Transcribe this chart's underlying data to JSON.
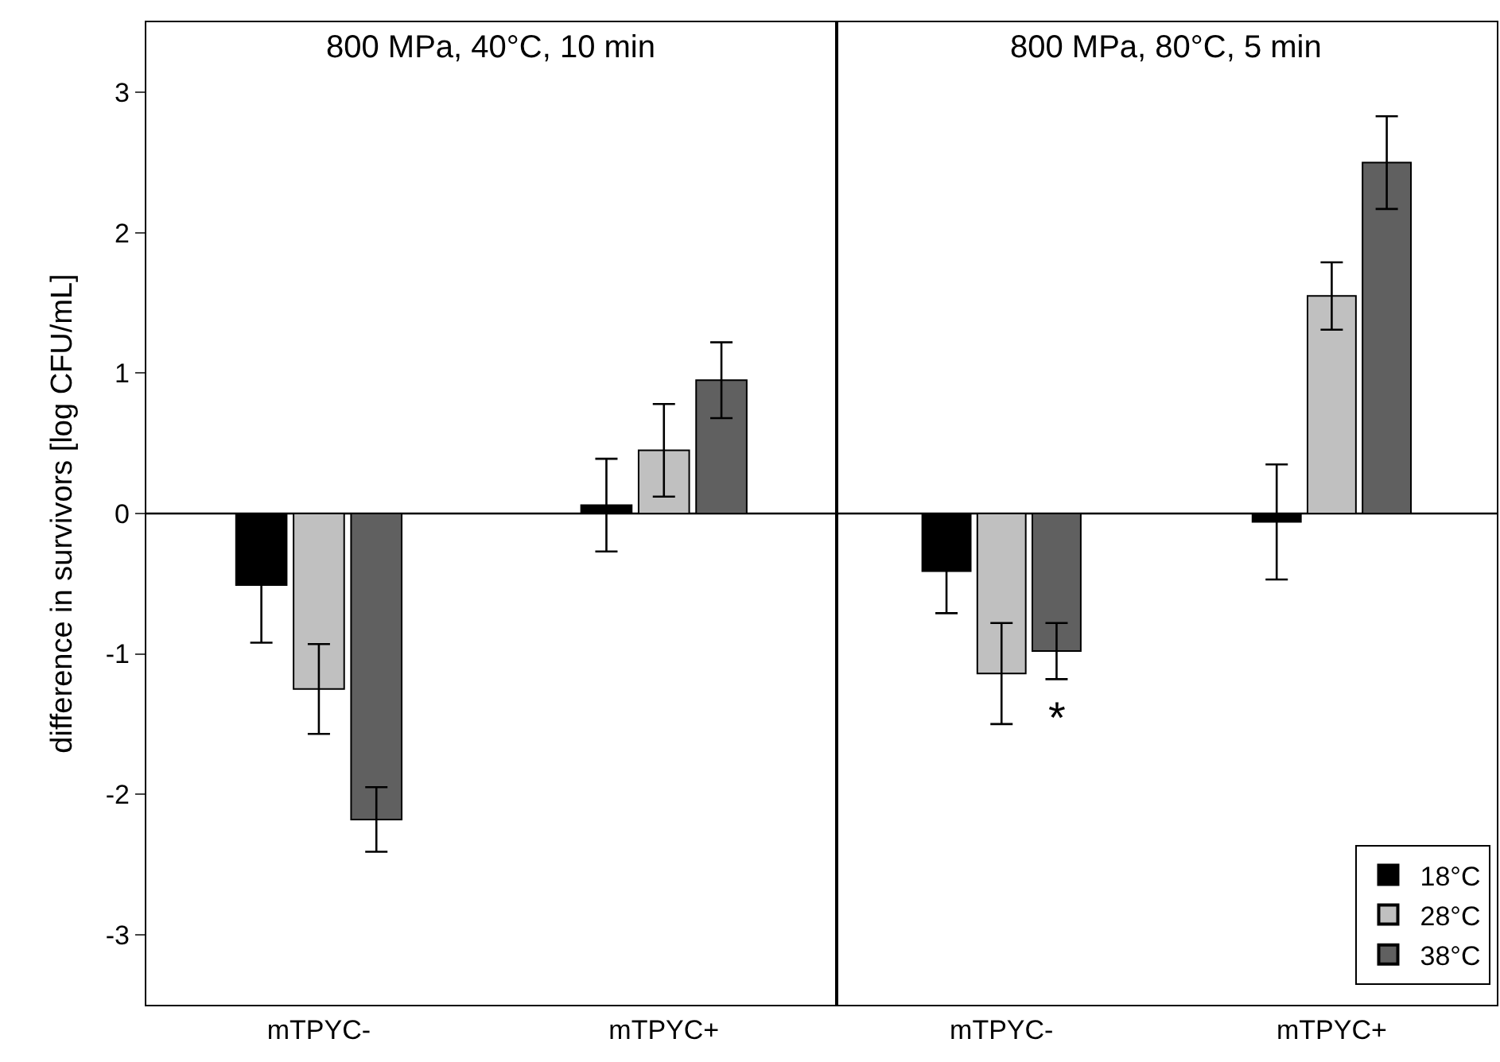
{
  "chart_data": [
    {
      "type": "bar",
      "title": "800 MPa, 40°C, 10 min",
      "ylabel": "difference in survivors [log CFU/mL]",
      "categories": [
        "mTPYC-",
        "mTPYC+"
      ],
      "series": [
        {
          "color": "#000000",
          "values": [
            -0.51,
            0.06
          ],
          "errors": [
            0.41,
            0.33
          ]
        },
        {
          "color": "#c0c0c0",
          "values": [
            -1.25,
            0.45
          ],
          "errors": [
            0.32,
            0.33
          ]
        },
        {
          "color": "#606060",
          "values": [
            -2.18,
            0.95
          ],
          "errors": [
            0.23,
            0.27
          ]
        }
      ],
      "ref_lines": [
        {
          "axis": "y",
          "value": 0,
          "color": "#000000"
        }
      ],
      "ylim": [
        -3.5,
        3.5
      ],
      "yticks": [
        -3,
        -2,
        -1,
        0,
        1,
        2,
        3
      ]
    },
    {
      "type": "bar",
      "title": "800 MPa, 80°C, 5 min",
      "categories": [
        "mTPYC-",
        "mTPYC+"
      ],
      "series": [
        {
          "name": "18°C",
          "color": "#000000",
          "values": [
            -0.41,
            -0.06
          ],
          "errors": [
            0.3,
            0.41
          ]
        },
        {
          "name": "28°C",
          "color": "#c0c0c0",
          "values": [
            -1.14,
            1.55
          ],
          "errors": [
            0.36,
            0.24
          ]
        },
        {
          "name": "38°C",
          "color": "#606060",
          "values": [
            -0.98,
            2.5
          ],
          "errors": [
            0.2,
            0.33
          ]
        }
      ],
      "annotations": [
        {
          "text": "*",
          "x": "mTPYC-",
          "y": -1.45
        }
      ],
      "ref_lines": [
        {
          "axis": "y",
          "value": 0,
          "color": "#000000"
        }
      ],
      "ylim": [
        -3.5,
        3.5
      ],
      "yticks": [
        -3,
        -2,
        -1,
        0,
        1,
        2,
        3
      ],
      "legend": "bottom right",
      "tick_labels": "x"
    }
  ]
}
